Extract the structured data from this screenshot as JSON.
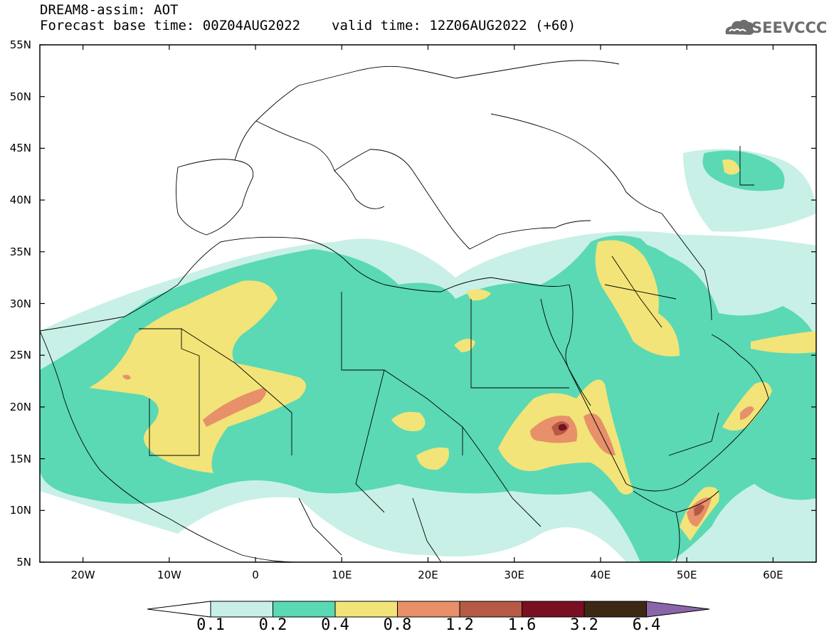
{
  "header": {
    "title_line1": "DREAM8-assim: AOT",
    "forecast_base": "Forecast base time: 00Z04AUG2022",
    "valid_time": "valid time: 12Z06AUG2022 (+60)",
    "logo_text": "SEEVCCC"
  },
  "map": {
    "lat_labels": [
      "55N",
      "50N",
      "45N",
      "40N",
      "35N",
      "30N",
      "25N",
      "20N",
      "15N",
      "10N",
      "5N"
    ],
    "lon_labels": [
      "20W",
      "10W",
      "0",
      "10E",
      "20E",
      "30E",
      "40E",
      "50E",
      "60E"
    ],
    "lon_range": [
      -25,
      65
    ],
    "lat_range": [
      5,
      55
    ]
  },
  "colorbar": {
    "labels": [
      "0.1",
      "0.2",
      "0.4",
      "0.8",
      "1.2",
      "1.6",
      "3.2",
      "6.4"
    ],
    "colors": [
      "#c8f0e6",
      "#5ad9b4",
      "#f2e478",
      "#e8906a",
      "#b55a44",
      "#7a0f22",
      "#3d2816",
      "#8a66a8"
    ]
  },
  "legend_colors": {
    "c01": "#c8f0e6",
    "c02": "#5ad9b4",
    "c04": "#f2e478",
    "c08": "#e8906a",
    "c12": "#b55a44",
    "c16": "#7a0f22"
  }
}
